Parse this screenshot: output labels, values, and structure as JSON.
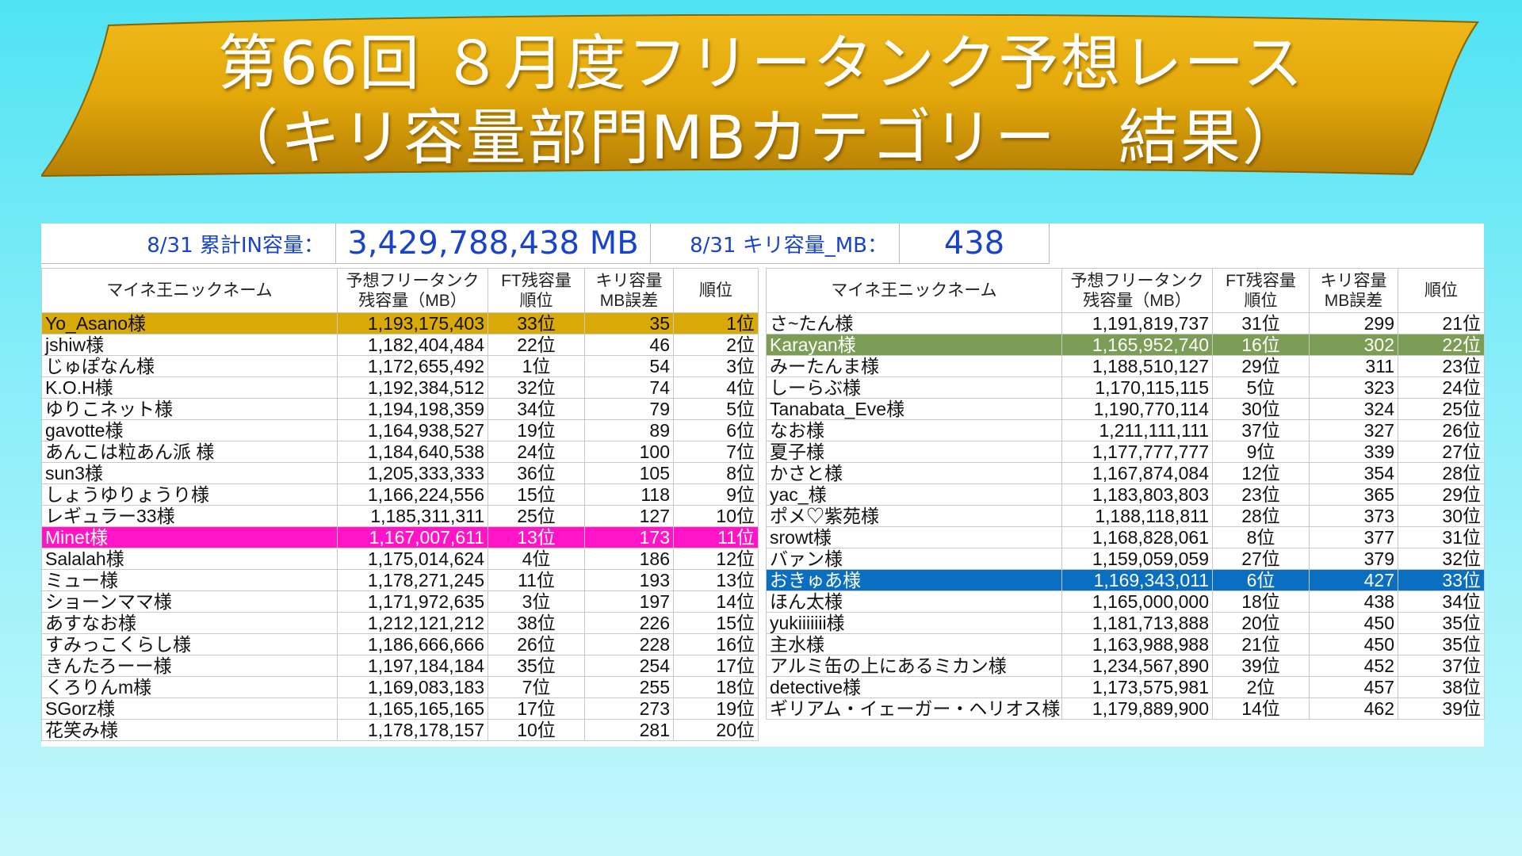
{
  "banner": {
    "line1": "第66回 ８月度フリータンク予想レース",
    "line2": "（キリ容量部門MBカテゴリー　結果）",
    "fill_color": "#e3a80a"
  },
  "info": {
    "cumulative_label": "8/31 累計IN容量：",
    "cumulative_value": "3,429,788,438 MB",
    "kiri_label": "8/31 キリ容量_MB：",
    "kiri_value": "438"
  },
  "columns": {
    "name": "マイネ王ニックネーム",
    "prediction": "予想フリータンク\n残容量（MB）",
    "ft_rank": "FT残容量\n順位",
    "kiri_error": "キリ容量\nMB誤差",
    "rank": "順位"
  },
  "highlight_colors": {
    "gold": "#d9a907",
    "pink": "#ff14c8",
    "green": "#7c9d55",
    "blue": "#0a6fc0"
  },
  "left_table": [
    {
      "name": "Yo_Asano様",
      "prediction": "1,193,175,403",
      "ft_rank": "33位",
      "error": "35",
      "rank": "1位",
      "highlight": "gold"
    },
    {
      "name": "jshiw様",
      "prediction": "1,182,404,484",
      "ft_rank": "22位",
      "error": "46",
      "rank": "2位"
    },
    {
      "name": "じゅぽなん様",
      "prediction": "1,172,655,492",
      "ft_rank": "1位",
      "error": "54",
      "rank": "3位"
    },
    {
      "name": "K.O.H様",
      "prediction": "1,192,384,512",
      "ft_rank": "32位",
      "error": "74",
      "rank": "4位"
    },
    {
      "name": "ゆりこネット様",
      "prediction": "1,194,198,359",
      "ft_rank": "34位",
      "error": "79",
      "rank": "5位"
    },
    {
      "name": "gavotte様",
      "prediction": "1,164,938,527",
      "ft_rank": "19位",
      "error": "89",
      "rank": "6位"
    },
    {
      "name": "あんこは粒あん派 様",
      "prediction": "1,184,640,538",
      "ft_rank": "24位",
      "error": "100",
      "rank": "7位"
    },
    {
      "name": "sun3様",
      "prediction": "1,205,333,333",
      "ft_rank": "36位",
      "error": "105",
      "rank": "8位"
    },
    {
      "name": "しょうゆりょうり様",
      "prediction": "1,166,224,556",
      "ft_rank": "15位",
      "error": "118",
      "rank": "9位"
    },
    {
      "name": "レギュラー33様",
      "prediction": "1,185,311,311",
      "ft_rank": "25位",
      "error": "127",
      "rank": "10位"
    },
    {
      "name": "Minet様",
      "prediction": "1,167,007,611",
      "ft_rank": "13位",
      "error": "173",
      "rank": "11位",
      "highlight": "pink"
    },
    {
      "name": "Salalah様",
      "prediction": "1,175,014,624",
      "ft_rank": "4位",
      "error": "186",
      "rank": "12位"
    },
    {
      "name": "ミュー様",
      "prediction": "1,178,271,245",
      "ft_rank": "11位",
      "error": "193",
      "rank": "13位"
    },
    {
      "name": "ショーンママ様",
      "prediction": "1,171,972,635",
      "ft_rank": "3位",
      "error": "197",
      "rank": "14位"
    },
    {
      "name": "あすなお様",
      "prediction": "1,212,121,212",
      "ft_rank": "38位",
      "error": "226",
      "rank": "15位"
    },
    {
      "name": "すみっこくらし様",
      "prediction": "1,186,666,666",
      "ft_rank": "26位",
      "error": "228",
      "rank": "16位"
    },
    {
      "name": "きんたろーー様",
      "prediction": "1,197,184,184",
      "ft_rank": "35位",
      "error": "254",
      "rank": "17位"
    },
    {
      "name": "くろりんm様",
      "prediction": "1,169,083,183",
      "ft_rank": "7位",
      "error": "255",
      "rank": "18位"
    },
    {
      "name": "SGorz様",
      "prediction": "1,165,165,165",
      "ft_rank": "17位",
      "error": "273",
      "rank": "19位"
    },
    {
      "name": "花笑み様",
      "prediction": "1,178,178,157",
      "ft_rank": "10位",
      "error": "281",
      "rank": "20位"
    }
  ],
  "right_table": [
    {
      "name": "さ~たん様",
      "prediction": "1,191,819,737",
      "ft_rank": "31位",
      "error": "299",
      "rank": "21位"
    },
    {
      "name": "Karayan様",
      "prediction": "1,165,952,740",
      "ft_rank": "16位",
      "error": "302",
      "rank": "22位",
      "highlight": "green"
    },
    {
      "name": "みーたんま様",
      "prediction": "1,188,510,127",
      "ft_rank": "29位",
      "error": "311",
      "rank": "23位"
    },
    {
      "name": "しーらぶ様",
      "prediction": "1,170,115,115",
      "ft_rank": "5位",
      "error": "323",
      "rank": "24位"
    },
    {
      "name": "Tanabata_Eve様",
      "prediction": "1,190,770,114",
      "ft_rank": "30位",
      "error": "324",
      "rank": "25位"
    },
    {
      "name": "なお様",
      "prediction": "1,211,111,111",
      "ft_rank": "37位",
      "error": "327",
      "rank": "26位"
    },
    {
      "name": "夏子様",
      "prediction": "1,177,777,777",
      "ft_rank": "9位",
      "error": "339",
      "rank": "27位"
    },
    {
      "name": "かさと様",
      "prediction": "1,167,874,084",
      "ft_rank": "12位",
      "error": "354",
      "rank": "28位"
    },
    {
      "name": "yac_様",
      "prediction": "1,183,803,803",
      "ft_rank": "23位",
      "error": "365",
      "rank": "29位"
    },
    {
      "name": "ポメ♡紫苑様",
      "prediction": "1,188,118,811",
      "ft_rank": "28位",
      "error": "373",
      "rank": "30位"
    },
    {
      "name": "srowt様",
      "prediction": "1,168,828,061",
      "ft_rank": "8位",
      "error": "377",
      "rank": "31位"
    },
    {
      "name": "バァン様",
      "prediction": "1,159,059,059",
      "ft_rank": "27位",
      "error": "379",
      "rank": "32位"
    },
    {
      "name": "おきゅあ様",
      "prediction": "1,169,343,011",
      "ft_rank": "6位",
      "error": "427",
      "rank": "33位",
      "highlight": "blue"
    },
    {
      "name": "ほん太様",
      "prediction": "1,165,000,000",
      "ft_rank": "18位",
      "error": "438",
      "rank": "34位"
    },
    {
      "name": "yukiiiiiii様",
      "prediction": "1,181,713,888",
      "ft_rank": "20位",
      "error": "450",
      "rank": "35位"
    },
    {
      "name": "主水様",
      "prediction": "1,163,988,988",
      "ft_rank": "21位",
      "error": "450",
      "rank": "35位"
    },
    {
      "name": "アルミ缶の上にあるミカン様",
      "prediction": "1,234,567,890",
      "ft_rank": "39位",
      "error": "452",
      "rank": "37位"
    },
    {
      "name": "detective様",
      "prediction": "1,173,575,981",
      "ft_rank": "2位",
      "error": "457",
      "rank": "38位"
    },
    {
      "name": "ギリアム・イェーガー・ヘリオス様",
      "prediction": "1,179,889,900",
      "ft_rank": "14位",
      "error": "462",
      "rank": "39位"
    }
  ]
}
